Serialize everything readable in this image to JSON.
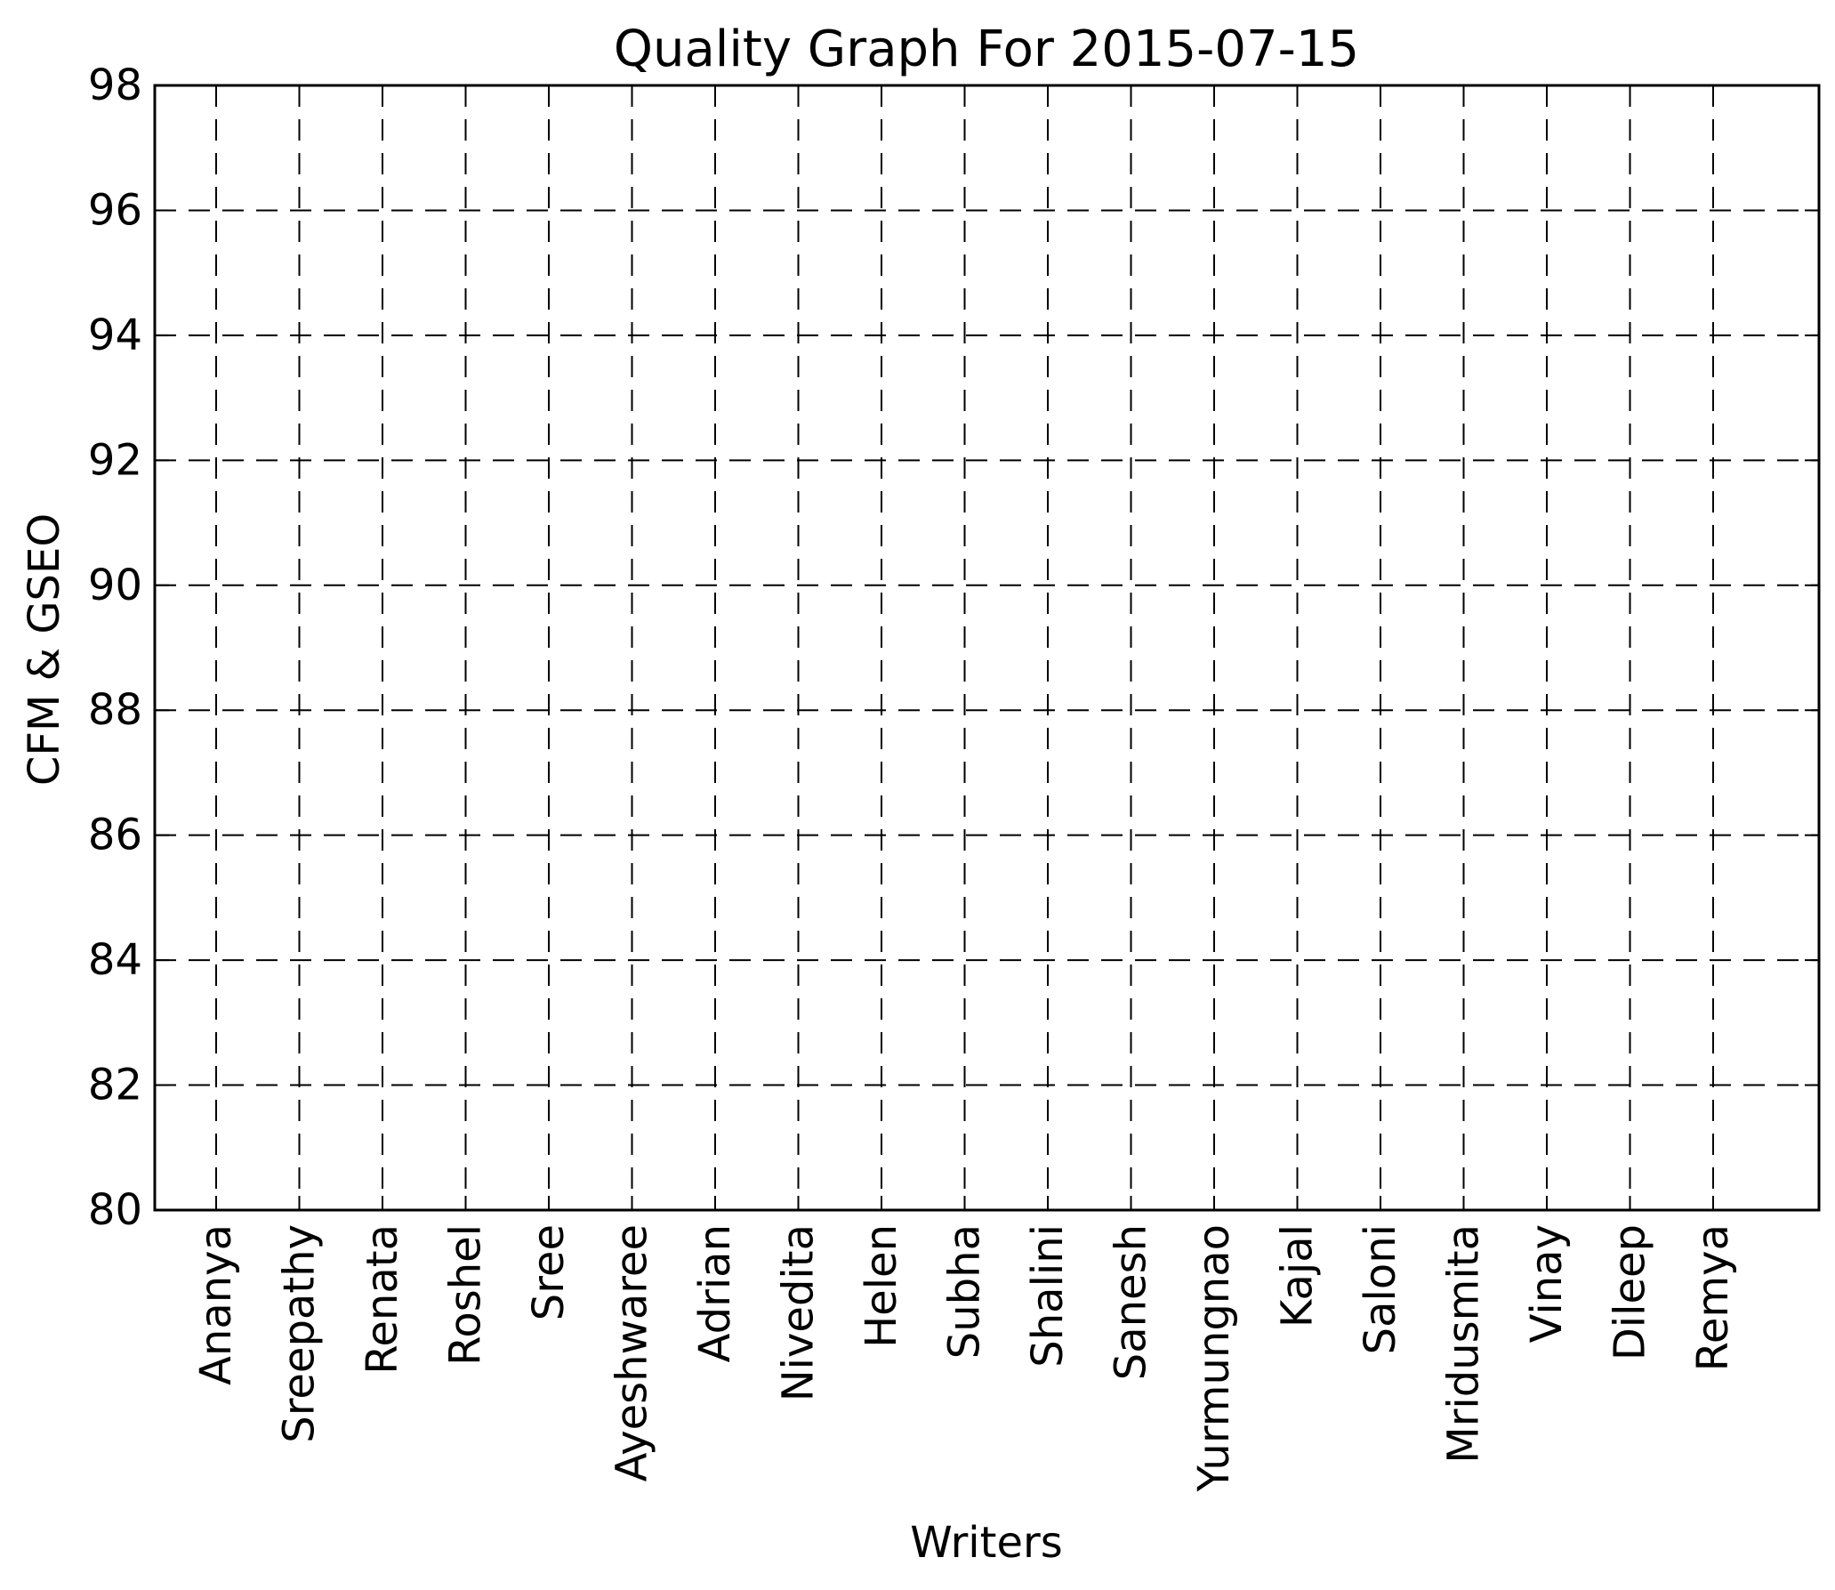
{
  "chart_data": {
    "type": "bar",
    "title": "Quality Graph For 2015-07-15",
    "xlabel": "Writers",
    "ylabel": "CFM & GSEO",
    "categories": [
      "Ananya",
      "Sreepathy",
      "Renata",
      "Roshel",
      "Sree",
      "Ayeshwaree",
      "Adrian",
      "Nivedita",
      "Helen",
      "Subha",
      "Shalini",
      "Sanesh",
      "Yurmungnao",
      "Kajal",
      "Saloni",
      "Mridusmita",
      "Vinay",
      "Dileep",
      "Remya"
    ],
    "series": [],
    "ylim": [
      80,
      98
    ],
    "yticks": [
      "80",
      "82",
      "84",
      "86",
      "88",
      "90",
      "92",
      "94",
      "96",
      "98"
    ],
    "grid": true,
    "grid_style": "dashed",
    "legend": "none"
  }
}
